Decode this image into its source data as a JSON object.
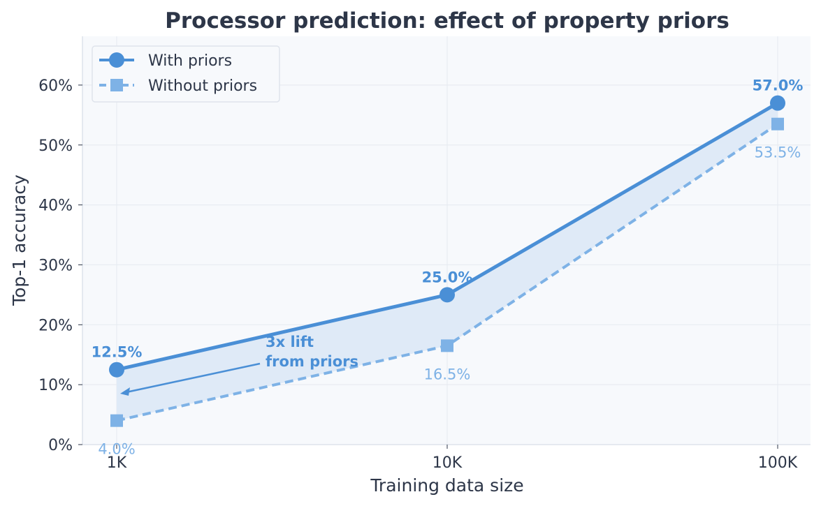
{
  "chart_data": {
    "type": "line",
    "title": "Processor prediction: effect of property priors",
    "xlabel": "Training data size",
    "ylabel": "Top-1 accuracy",
    "x_scale": "log",
    "categories": [
      "1K",
      "10K",
      "100K"
    ],
    "x_values": [
      1000,
      10000,
      100000
    ],
    "ylim": [
      0,
      68
    ],
    "yticks": [
      0,
      10,
      20,
      30,
      40,
      50,
      60
    ],
    "ytick_labels": [
      "0%",
      "10%",
      "20%",
      "30%",
      "40%",
      "50%",
      "60%"
    ],
    "grid": true,
    "legend_position": "top-left",
    "series": [
      {
        "name": "With priors",
        "values": [
          12.5,
          25.0,
          57.0
        ],
        "labels": [
          "12.5%",
          "25.0%",
          "57.0%"
        ],
        "color": "#4a8fd6",
        "style": "solid",
        "marker": "circle"
      },
      {
        "name": "Without priors",
        "values": [
          4.0,
          16.5,
          53.5
        ],
        "labels": [
          "4.0%",
          "16.5%",
          "53.5%"
        ],
        "color": "#7eb2e6",
        "style": "dashed",
        "marker": "square"
      }
    ],
    "fill_between": {
      "color": "#dfeaf7"
    },
    "annotation": {
      "text_lines": [
        "3x lift",
        "from priors"
      ],
      "color": "#4a8fd6",
      "points_to_x": 1000,
      "points_to_y": 8.5
    }
  }
}
